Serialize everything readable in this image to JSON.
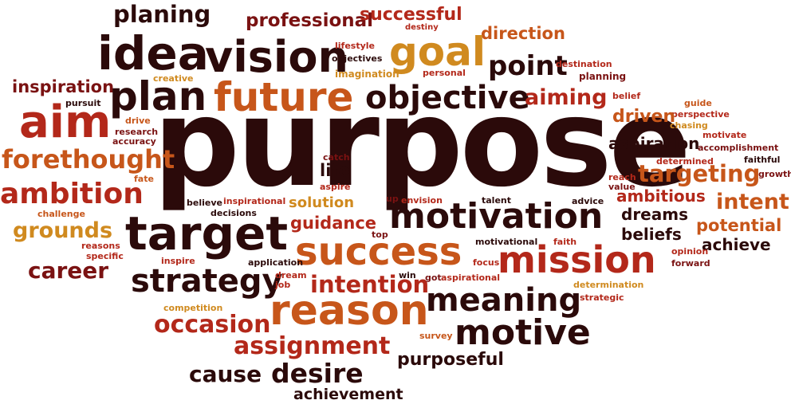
{
  "words": [
    {
      "text": "planing",
      "color": "#2b0a0a"
    },
    {
      "text": "professional",
      "color": "#7a1212"
    },
    {
      "text": "successful",
      "color": "#b3281a"
    },
    {
      "text": "destiny",
      "color": "#b3281a"
    },
    {
      "text": "direction",
      "color": "#c7561a"
    },
    {
      "text": "idea",
      "color": "#2b0a0a"
    },
    {
      "text": "vision",
      "color": "#2b0a0a"
    },
    {
      "text": "lifestyle",
      "color": "#b3281a"
    },
    {
      "text": "objectives",
      "color": "#2b0a0a"
    },
    {
      "text": "goal",
      "color": "#d08a1f"
    },
    {
      "text": "point",
      "color": "#2b0a0a"
    },
    {
      "text": "destination",
      "color": "#b3281a"
    },
    {
      "text": "imagination",
      "color": "#d08a1f"
    },
    {
      "text": "personal",
      "color": "#b3281a"
    },
    {
      "text": "planning",
      "color": "#7a1212"
    },
    {
      "text": "inspiration",
      "color": "#7a1212"
    },
    {
      "text": "creative",
      "color": "#d08a1f"
    },
    {
      "text": "plan",
      "color": "#2b0a0a"
    },
    {
      "text": "future",
      "color": "#c7561a"
    },
    {
      "text": "objective",
      "color": "#2b0a0a"
    },
    {
      "text": "aiming",
      "color": "#b3281a"
    },
    {
      "text": "belief",
      "color": "#b3281a"
    },
    {
      "text": "guide",
      "color": "#c7561a"
    },
    {
      "text": "pursuit",
      "color": "#2b0a0a"
    },
    {
      "text": "perspective",
      "color": "#b3281a"
    },
    {
      "text": "aim",
      "color": "#b3281a"
    },
    {
      "text": "drive",
      "color": "#c7561a"
    },
    {
      "text": "research",
      "color": "#7a1212"
    },
    {
      "text": "accuracy",
      "color": "#7a1212"
    },
    {
      "text": "purpose",
      "color": "#2b0a0a"
    },
    {
      "text": "driven",
      "color": "#c7561a"
    },
    {
      "text": "chasing",
      "color": "#d08a1f"
    },
    {
      "text": "motivate",
      "color": "#b3281a"
    },
    {
      "text": "aspiration",
      "color": "#2b0a0a"
    },
    {
      "text": "accomplishment",
      "color": "#7a1212"
    },
    {
      "text": "forethought",
      "color": "#c7561a"
    },
    {
      "text": "fate",
      "color": "#c7561a"
    },
    {
      "text": "catch",
      "color": "#7a1212"
    },
    {
      "text": "life",
      "color": "#2b0a0a"
    },
    {
      "text": "aspire",
      "color": "#b3281a"
    },
    {
      "text": "faithful",
      "color": "#2b0a0a"
    },
    {
      "text": "determined",
      "color": "#b3281a"
    },
    {
      "text": "reach",
      "color": "#b3281a"
    },
    {
      "text": "targeting",
      "color": "#c7561a"
    },
    {
      "text": "growth",
      "color": "#7a1212"
    },
    {
      "text": "value",
      "color": "#7a1212"
    },
    {
      "text": "ambition",
      "color": "#b3281a"
    },
    {
      "text": "ambitious",
      "color": "#b3281a"
    },
    {
      "text": "intent",
      "color": "#c7561a"
    },
    {
      "text": "believe",
      "color": "#2b0a0a"
    },
    {
      "text": "inspirational",
      "color": "#b3281a"
    },
    {
      "text": "solution",
      "color": "#d08a1f"
    },
    {
      "text": "up",
      "color": "#7a1212"
    },
    {
      "text": "envision",
      "color": "#b3281a"
    },
    {
      "text": "talent",
      "color": "#2b0a0a"
    },
    {
      "text": "advice",
      "color": "#2b0a0a"
    },
    {
      "text": "challenge",
      "color": "#c7561a"
    },
    {
      "text": "decisions",
      "color": "#2b0a0a"
    },
    {
      "text": "motivation",
      "color": "#2b0a0a"
    },
    {
      "text": "dreams",
      "color": "#2b0a0a"
    },
    {
      "text": "potential",
      "color": "#c7561a"
    },
    {
      "text": "grounds",
      "color": "#d08a1f"
    },
    {
      "text": "target",
      "color": "#2b0a0a"
    },
    {
      "text": "guidance",
      "color": "#b3281a"
    },
    {
      "text": "top",
      "color": "#7a1212"
    },
    {
      "text": "beliefs",
      "color": "#2b0a0a"
    },
    {
      "text": "achieve",
      "color": "#2b0a0a"
    },
    {
      "text": "reasons",
      "color": "#b3281a"
    },
    {
      "text": "motivational",
      "color": "#2b0a0a"
    },
    {
      "text": "faith",
      "color": "#b3281a"
    },
    {
      "text": "opinion",
      "color": "#b3281a"
    },
    {
      "text": "specific",
      "color": "#b3281a"
    },
    {
      "text": "success",
      "color": "#c7561a"
    },
    {
      "text": "mission",
      "color": "#b3281a"
    },
    {
      "text": "forward",
      "color": "#7a1212"
    },
    {
      "text": "career",
      "color": "#7a1212"
    },
    {
      "text": "inspire",
      "color": "#b3281a"
    },
    {
      "text": "application",
      "color": "#2b0a0a"
    },
    {
      "text": "focus",
      "color": "#b3281a"
    },
    {
      "text": "strategy",
      "color": "#2b0a0a"
    },
    {
      "text": "dream",
      "color": "#b3281a"
    },
    {
      "text": "win",
      "color": "#2b0a0a"
    },
    {
      "text": "job",
      "color": "#b3281a"
    },
    {
      "text": "intention",
      "color": "#b3281a"
    },
    {
      "text": "got",
      "color": "#7a1212"
    },
    {
      "text": "aspirational",
      "color": "#b3281a"
    },
    {
      "text": "determination",
      "color": "#d08a1f"
    },
    {
      "text": "strategic",
      "color": "#b3281a"
    },
    {
      "text": "meaning",
      "color": "#2b0a0a"
    },
    {
      "text": "competition",
      "color": "#d08a1f"
    },
    {
      "text": "reason",
      "color": "#c7561a"
    },
    {
      "text": "occasion",
      "color": "#b3281a"
    },
    {
      "text": "survey",
      "color": "#c7561a"
    },
    {
      "text": "motive",
      "color": "#2b0a0a"
    },
    {
      "text": "assignment",
      "color": "#b3281a"
    },
    {
      "text": "purposeful",
      "color": "#2b0a0a"
    },
    {
      "text": "cause",
      "color": "#2b0a0a"
    },
    {
      "text": "desire",
      "color": "#2b0a0a"
    },
    {
      "text": "achievement",
      "color": "#2b0a0a"
    }
  ]
}
